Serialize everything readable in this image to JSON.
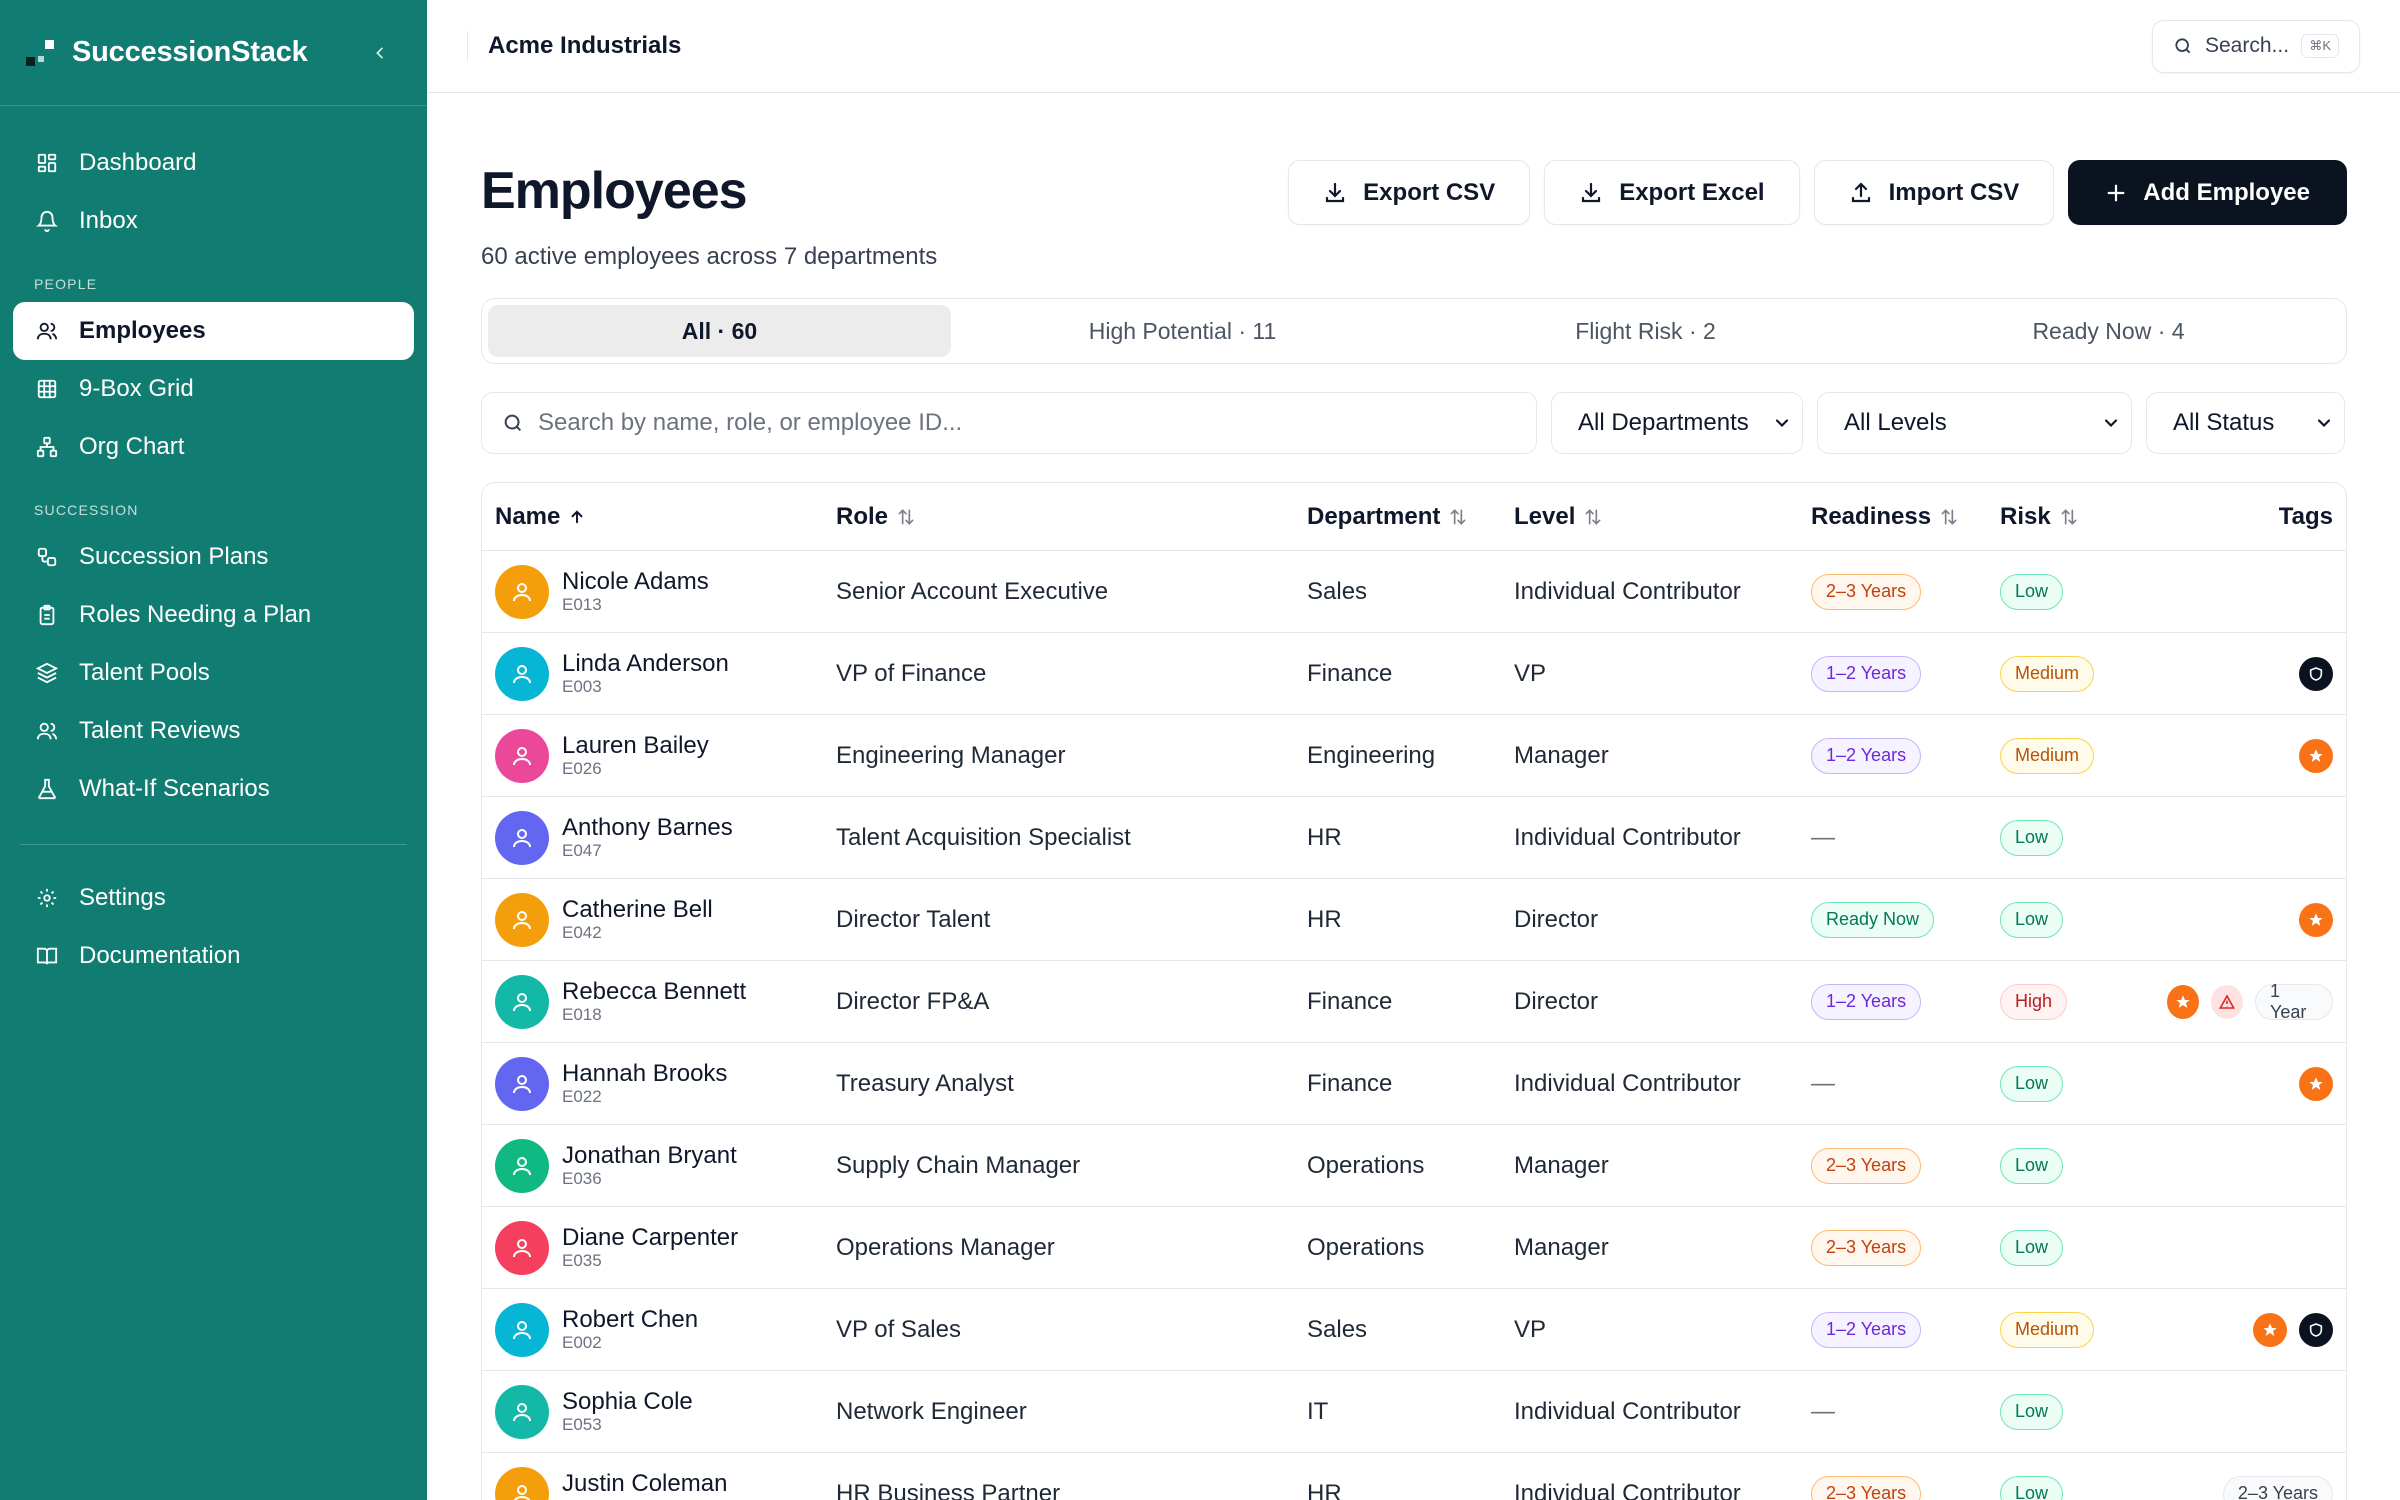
{
  "app": {
    "name": "SuccessionStack",
    "org": "Acme Industrials"
  },
  "global_search": {
    "label": "Search...",
    "shortcut": "⌘K"
  },
  "sidebar": {
    "top": [
      {
        "label": "Dashboard",
        "icon": "dashboard-icon"
      },
      {
        "label": "Inbox",
        "icon": "bell-icon"
      }
    ],
    "people_label": "PEOPLE",
    "people": [
      {
        "label": "Employees",
        "icon": "users-icon",
        "active": true
      },
      {
        "label": "9-Box Grid",
        "icon": "grid-icon"
      },
      {
        "label": "Org Chart",
        "icon": "org-chart-icon"
      }
    ],
    "succession_label": "SUCCESSION",
    "succession": [
      {
        "label": "Succession Plans",
        "icon": "workflow-icon"
      },
      {
        "label": "Roles Needing a Plan",
        "icon": "clipboard-icon"
      },
      {
        "label": "Talent Pools",
        "icon": "layers-icon"
      },
      {
        "label": "Talent Reviews",
        "icon": "users-icon"
      },
      {
        "label": "What-If Scenarios",
        "icon": "flask-icon"
      }
    ],
    "bottom": [
      {
        "label": "Settings",
        "icon": "gear-icon"
      },
      {
        "label": "Documentation",
        "icon": "book-icon"
      }
    ]
  },
  "page": {
    "title": "Employees",
    "subtitle": "60 active employees across 7 departments",
    "actions": {
      "export_csv": "Export CSV",
      "export_excel": "Export Excel",
      "import_csv": "Import CSV",
      "add_employee": "Add Employee"
    }
  },
  "tabs": [
    "All · 60",
    "High Potential · 11",
    "Flight Risk · 2",
    "Ready Now · 4"
  ],
  "filters": {
    "search_placeholder": "Search by name, role, or employee ID...",
    "department": "All Departments",
    "level": "All Levels",
    "status": "All Status"
  },
  "table": {
    "columns": {
      "name": "Name",
      "role": "Role",
      "department": "Department",
      "level": "Level",
      "readiness": "Readiness",
      "risk": "Risk",
      "tags": "Tags"
    }
  },
  "colors": {
    "sidebar": "#117d72",
    "primary": "#0b1320",
    "accent_orange": "#f97316"
  }
}
